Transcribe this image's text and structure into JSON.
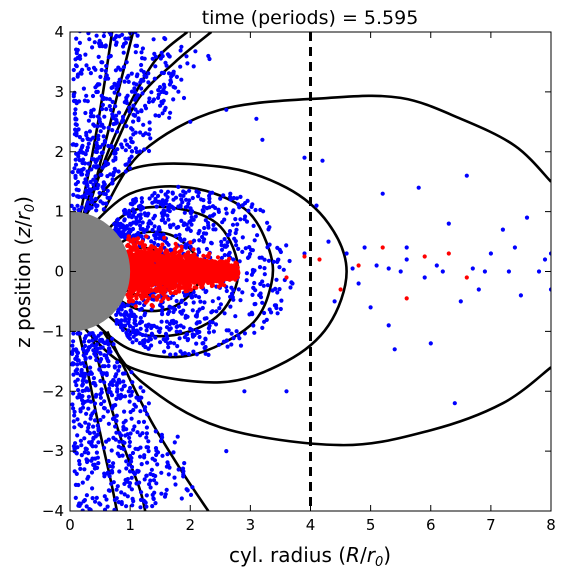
{
  "chart_data": {
    "type": "scatter",
    "title": "time (periods) = 5.595",
    "xlabel": "cyl. radius (R/r₀)",
    "ylabel": "z position (z/r₀)",
    "xlim": [
      0,
      8
    ],
    "ylim": [
      -4,
      4
    ],
    "xticks": [
      "0",
      "1",
      "2",
      "3",
      "4",
      "5",
      "6",
      "7",
      "8"
    ],
    "yticks": [
      "−4",
      "−3",
      "−2",
      "−1",
      "0",
      "1",
      "2",
      "3",
      "4"
    ],
    "grid": false,
    "legend": "none",
    "colors": {
      "blue_points": "#0000ff",
      "red_points": "#ff0000",
      "field_lines": "#000000",
      "star": "#808080",
      "marker_line": "#000000"
    },
    "star": {
      "center": [
        0,
        0
      ],
      "radius": 1.0
    },
    "vertical_marker": {
      "x": 4.0,
      "style": "dashed"
    },
    "field_lines": [
      {
        "name": "L1",
        "points": [
          [
            0.7,
            4.0
          ],
          [
            0.55,
            3.0
          ],
          [
            0.38,
            2.0
          ],
          [
            0.18,
            1.0
          ],
          [
            0.0,
            0.0
          ]
        ]
      },
      {
        "name": "L2",
        "points": [
          [
            1.05,
            4.0
          ],
          [
            0.8,
            3.0
          ],
          [
            0.55,
            2.0
          ],
          [
            0.35,
            1.2
          ],
          [
            0.15,
            0.5
          ],
          [
            0.0,
            0.0
          ]
        ]
      },
      {
        "name": "L3",
        "points": [
          [
            1.95,
            4.0
          ],
          [
            1.4,
            3.5
          ],
          [
            0.85,
            2.5
          ],
          [
            0.45,
            1.5
          ],
          [
            0.15,
            0.5
          ],
          [
            0.0,
            0.0
          ]
        ]
      },
      {
        "name": "L4",
        "points": [
          [
            2.35,
            4.0
          ],
          [
            1.75,
            3.5
          ],
          [
            1.15,
            2.9
          ],
          [
            0.7,
            2.0
          ],
          [
            0.3,
            1.2
          ],
          [
            0.0,
            0.0
          ]
        ]
      },
      {
        "name": "L5",
        "points": [
          [
            0.55,
            1.0
          ],
          [
            1.2,
            2.0
          ],
          [
            2.5,
            2.7
          ],
          [
            4.3,
            2.9
          ],
          [
            5.5,
            2.9
          ],
          [
            6.5,
            2.55
          ],
          [
            7.4,
            2.1
          ],
          [
            8.0,
            1.5
          ]
        ]
      },
      {
        "name": "L5b",
        "points": [
          [
            0.55,
            -1.0
          ],
          [
            1.2,
            -1.85
          ],
          [
            2.5,
            -2.6
          ],
          [
            4.5,
            -2.9
          ],
          [
            6.0,
            -2.65
          ],
          [
            7.2,
            -2.2
          ],
          [
            8.0,
            -1.6
          ]
        ]
      },
      {
        "name": "L6",
        "points": [
          [
            0.15,
            0.8
          ],
          [
            1.0,
            1.7
          ],
          [
            2.5,
            1.75
          ],
          [
            3.6,
            1.4
          ],
          [
            4.3,
            0.8
          ],
          [
            4.6,
            0.0
          ],
          [
            4.3,
            -0.9
          ],
          [
            3.6,
            -1.5
          ],
          [
            2.5,
            -1.85
          ],
          [
            1.0,
            -1.6
          ],
          [
            0.15,
            -0.85
          ]
        ]
      },
      {
        "name": "L7",
        "points": [
          [
            0.2,
            0.6
          ],
          [
            1.0,
            1.3
          ],
          [
            2.0,
            1.4
          ],
          [
            2.9,
            1.05
          ],
          [
            3.3,
            0.4
          ],
          [
            3.35,
            -0.2
          ],
          [
            3.0,
            -0.9
          ],
          [
            2.0,
            -1.4
          ],
          [
            1.0,
            -1.3
          ],
          [
            0.25,
            -0.7
          ]
        ]
      },
      {
        "name": "L8",
        "points": [
          [
            0.4,
            0.45
          ],
          [
            1.0,
            1.0
          ],
          [
            1.8,
            1.05
          ],
          [
            2.5,
            0.75
          ],
          [
            2.8,
            0.0
          ],
          [
            2.5,
            -0.7
          ],
          [
            1.8,
            -1.05
          ],
          [
            1.0,
            -1.0
          ],
          [
            0.4,
            -0.5
          ]
        ]
      },
      {
        "name": "L9",
        "points": [
          [
            0.65,
            0.35
          ],
          [
            1.2,
            0.65
          ],
          [
            1.8,
            0.55
          ],
          [
            2.2,
            0.0
          ],
          [
            1.8,
            -0.55
          ],
          [
            1.2,
            -0.65
          ],
          [
            0.7,
            -0.4
          ]
        ]
      },
      {
        "name": "L10",
        "points": [
          [
            0.85,
            0.25
          ],
          [
            1.2,
            0.4
          ],
          [
            1.55,
            0.25
          ],
          [
            1.65,
            0.0
          ],
          [
            1.55,
            -0.25
          ],
          [
            1.2,
            -0.4
          ],
          [
            0.9,
            -0.3
          ]
        ]
      },
      {
        "name": "L11",
        "points": [
          [
            0.62,
            -1.0
          ],
          [
            0.9,
            -1.6
          ],
          [
            1.35,
            -2.5
          ],
          [
            1.9,
            -3.4
          ],
          [
            2.3,
            -4.0
          ]
        ]
      },
      {
        "name": "L12",
        "points": [
          [
            0.35,
            -1.0
          ],
          [
            0.55,
            -1.8
          ],
          [
            0.85,
            -2.8
          ],
          [
            1.15,
            -3.6
          ],
          [
            1.25,
            -4.0
          ]
        ]
      },
      {
        "name": "L13",
        "points": [
          [
            0.12,
            -0.9
          ],
          [
            0.28,
            -1.6
          ],
          [
            0.48,
            -2.6
          ],
          [
            0.68,
            -3.5
          ],
          [
            0.78,
            -4.0
          ]
        ]
      }
    ],
    "blue_clusters": [
      {
        "region": "north polar wedge",
        "count": 520,
        "xrange": [
          0,
          1.9
        ],
        "yrange": [
          1.0,
          4.0
        ]
      },
      {
        "region": "south polar wedge",
        "count": 520,
        "xrange": [
          0,
          1.9
        ],
        "yrange": [
          -4.0,
          -1.0
        ]
      },
      {
        "region": "inner magnetosphere shell",
        "count": 900,
        "xrange": [
          0.6,
          3.8
        ],
        "yrange": [
          -1.7,
          1.7
        ]
      }
    ],
    "blue_scattered": [
      [
        2.3,
        3.6
      ],
      [
        2.6,
        2.7
      ],
      [
        3.1,
        2.55
      ],
      [
        3.9,
        1.9
      ],
      [
        4.2,
        1.85
      ],
      [
        4.3,
        0.5
      ],
      [
        4.6,
        0.3
      ],
      [
        4.8,
        -0.2
      ],
      [
        5.1,
        0.1
      ],
      [
        5.0,
        -0.6
      ],
      [
        5.2,
        1.3
      ],
      [
        5.3,
        -0.9
      ],
      [
        5.5,
        0.0
      ],
      [
        5.6,
        0.4
      ],
      [
        5.8,
        1.4
      ],
      [
        6.0,
        -1.2
      ],
      [
        6.1,
        0.1
      ],
      [
        6.3,
        0.8
      ],
      [
        6.5,
        -0.5
      ],
      [
        6.6,
        1.6
      ],
      [
        6.9,
        0.0
      ],
      [
        7.0,
        0.3
      ],
      [
        7.2,
        0.7
      ],
      [
        7.5,
        -0.4
      ],
      [
        7.6,
        0.9
      ],
      [
        7.8,
        0.0
      ],
      [
        7.9,
        0.2
      ],
      [
        6.4,
        -2.2
      ],
      [
        5.4,
        -1.3
      ],
      [
        4.1,
        1.1
      ],
      [
        4.4,
        -0.5
      ],
      [
        3.6,
        -2.0
      ],
      [
        4.7,
        0.05
      ],
      [
        5.3,
        0.05
      ],
      [
        5.9,
        -0.1
      ],
      [
        6.2,
        0.0
      ],
      [
        6.7,
        0.05
      ],
      [
        7.3,
        0.0
      ],
      [
        3.2,
        2.2
      ],
      [
        1.7,
        3.3
      ],
      [
        2.0,
        2.5
      ],
      [
        0.9,
        3.8
      ],
      [
        1.2,
        3.2
      ],
      [
        0.4,
        3.4
      ],
      [
        2.9,
        -2.0
      ],
      [
        1.9,
        -3.2
      ],
      [
        2.6,
        -3.0
      ],
      [
        5.6,
        0.2
      ],
      [
        4.9,
        0.4
      ],
      [
        6.8,
        -0.3
      ],
      [
        7.4,
        0.4
      ],
      [
        8.0,
        0.3
      ],
      [
        8.0,
        -0.3
      ],
      [
        3.9,
        0.3
      ],
      [
        3.7,
        -0.2
      ]
    ],
    "red_cluster": {
      "count": 2200,
      "xrange": [
        0.95,
        2.8
      ],
      "yrange": [
        -0.55,
        0.55
      ]
    },
    "red_scattered": [
      [
        3.9,
        0.25
      ],
      [
        4.15,
        0.2
      ],
      [
        4.5,
        -0.3
      ],
      [
        5.2,
        0.4
      ],
      [
        5.9,
        0.25
      ],
      [
        6.3,
        0.3
      ],
      [
        6.6,
        -0.1
      ],
      [
        3.6,
        -0.1
      ],
      [
        5.6,
        -0.45
      ],
      [
        4.8,
        0.1
      ]
    ]
  }
}
